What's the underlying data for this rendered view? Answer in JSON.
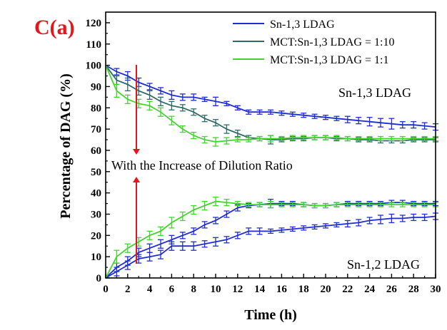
{
  "panel_label": "C(a)",
  "colors": {
    "panel_label": "#e8141a",
    "arrow": "#e8141a",
    "axis": "#000000"
  },
  "annotations": {
    "top_curve": "Sn-1,3 LDAG",
    "bottom_curve": "Sn-1,2 LDAG",
    "arrow_text": "With the Increase of Dilution Ratio"
  },
  "chart_data": {
    "type": "line",
    "title": "",
    "xlabel": "Time (h)",
    "ylabel": "Percentage of DAG (%)",
    "xlim": [
      0,
      30
    ],
    "ylim": [
      0,
      125
    ],
    "xticks": [
      0,
      2,
      4,
      6,
      8,
      10,
      12,
      14,
      16,
      18,
      20,
      22,
      24,
      26,
      28,
      30
    ],
    "yticks": [
      0,
      10,
      20,
      30,
      40,
      50,
      60,
      70,
      80,
      90,
      100,
      110,
      120
    ],
    "grid": false,
    "legend_position": "top-right",
    "legend": [
      {
        "label": "Sn-1,3 LDAG",
        "color": "#1f2bd6"
      },
      {
        "label": "MCT:Sn-1,3 LDAG = 1:10",
        "color": "#2e6b66"
      },
      {
        "label": "MCT:Sn-1,3 LDAG = 1:1",
        "color": "#3fd629"
      }
    ],
    "series": [
      {
        "group": "Sn-1,3 LDAG",
        "color": "#1f2bd6",
        "x": [
          0,
          1,
          2,
          3,
          4,
          5,
          6,
          7,
          8,
          9,
          10,
          11,
          12,
          13,
          14,
          15,
          16,
          17,
          18,
          19,
          20,
          21,
          22,
          23,
          24,
          25,
          26,
          27,
          28,
          29,
          30
        ],
        "y": [
          100,
          97,
          95,
          92,
          90,
          88,
          86,
          85,
          85,
          84,
          83,
          82,
          80,
          78,
          78,
          78,
          77.5,
          77,
          76.5,
          76,
          75.5,
          75,
          74.5,
          74,
          73.5,
          73,
          72.5,
          72,
          72,
          71.5,
          71
        ],
        "err": [
          0,
          1.5,
          2,
          2,
          1.5,
          1.5,
          2,
          1.5,
          1.5,
          1,
          2,
          1,
          1,
          1,
          1,
          1,
          1,
          1,
          1,
          1,
          1,
          1,
          1.5,
          1.5,
          2,
          2,
          2.5,
          1.5,
          1.5,
          1.5,
          1.5
        ]
      },
      {
        "group": "Sn-1,3 LDAG",
        "color": "#2e6b66",
        "x": [
          0,
          1,
          2,
          3,
          4,
          5,
          6,
          7,
          8,
          9,
          10,
          11,
          12,
          13,
          14,
          15,
          16,
          17,
          18,
          19,
          20,
          21,
          22,
          23,
          24,
          25,
          26,
          27,
          28,
          29,
          30
        ],
        "y": [
          100,
          93,
          91,
          88,
          86,
          83,
          81,
          80,
          78,
          75,
          73,
          70,
          68,
          66,
          65.5,
          65,
          65,
          65.5,
          65.5,
          66,
          66,
          65.5,
          65.5,
          65,
          65,
          64.5,
          64.5,
          64.5,
          65,
          65,
          65
        ],
        "err": [
          0,
          2,
          3,
          2,
          2,
          2,
          2,
          1.5,
          1.5,
          1.5,
          1.5,
          2,
          1.5,
          1,
          1,
          2,
          1,
          1,
          1,
          1,
          1,
          1,
          1,
          1,
          1,
          1,
          1,
          1,
          1,
          1,
          1
        ]
      },
      {
        "group": "Sn-1,3 LDAG",
        "color": "#3fd629",
        "x": [
          0,
          1,
          2,
          3,
          4,
          5,
          6,
          7,
          8,
          9,
          10,
          11,
          12,
          13,
          14,
          15,
          16,
          17,
          18,
          19,
          20,
          21,
          22,
          23,
          24,
          25,
          26,
          27,
          28,
          29,
          30
        ],
        "y": [
          100,
          88,
          84,
          82,
          81,
          78,
          74,
          70,
          67,
          65,
          64,
          64.5,
          65,
          65,
          65.5,
          65.5,
          65.5,
          66,
          66,
          66,
          66,
          66,
          65.5,
          65.5,
          65.5,
          65.5,
          65.5,
          65.5,
          65.5,
          65.5,
          65.5
        ],
        "err": [
          0,
          3,
          2,
          2,
          2,
          2,
          2,
          1.5,
          1.5,
          1.5,
          2,
          1.5,
          1,
          1,
          1,
          1.5,
          1,
          1,
          1,
          1,
          1,
          1,
          1,
          1,
          1,
          1,
          1,
          1,
          1,
          1,
          1
        ]
      },
      {
        "group": "Sn-1,2 LDAG",
        "color": "#1f2bd6",
        "x": [
          0,
          1,
          2,
          3,
          4,
          5,
          6,
          7,
          8,
          9,
          10,
          11,
          12,
          13,
          14,
          15,
          16,
          17,
          18,
          19,
          20,
          21,
          22,
          23,
          24,
          25,
          26,
          27,
          28,
          29,
          30
        ],
        "y": [
          0,
          3,
          6,
          9,
          10,
          11,
          15,
          15,
          15,
          16,
          17,
          18,
          20,
          22,
          22,
          22,
          22.5,
          23,
          23.5,
          24,
          24.5,
          25,
          25.5,
          26,
          27,
          27.5,
          28,
          28,
          28.5,
          28.5,
          29
        ],
        "err": [
          0,
          2,
          2,
          2,
          2,
          2,
          2,
          2,
          2,
          1.5,
          2,
          1.5,
          1.5,
          1.5,
          1.5,
          1,
          1,
          1,
          1,
          1,
          1,
          1,
          1.5,
          1.5,
          1.5,
          2,
          2,
          1.5,
          1.5,
          1.5,
          1.5
        ]
      },
      {
        "group": "Sn-1,2 LDAG",
        "color": "#1f2bd6",
        "x": [
          0,
          1,
          2,
          3,
          4,
          5,
          6,
          7,
          8,
          9,
          10,
          11,
          12,
          13,
          14,
          15,
          16,
          17,
          18,
          19,
          20,
          21,
          22,
          23,
          24,
          25,
          26,
          27,
          28,
          29,
          30
        ],
        "y": [
          0,
          5,
          8,
          12,
          14,
          16,
          18,
          20,
          22,
          25,
          27,
          30,
          33,
          34,
          34.5,
          35,
          35,
          35,
          34.5,
          34,
          34,
          34.5,
          35,
          35,
          35,
          35,
          35.5,
          35.5,
          35,
          35,
          35
        ],
        "err": [
          0,
          2,
          2,
          2,
          2,
          2,
          2,
          1.5,
          1.5,
          1.5,
          1.5,
          1.5,
          1.5,
          1,
          1,
          2,
          1,
          1,
          1,
          1,
          1,
          1,
          1,
          1,
          1,
          1,
          1,
          1,
          1,
          1,
          1
        ]
      },
      {
        "group": "Sn-1,2 LDAG",
        "color": "#3fd629",
        "x": [
          0,
          1,
          2,
          3,
          4,
          5,
          6,
          7,
          8,
          9,
          10,
          11,
          12,
          13,
          14,
          15,
          16,
          17,
          18,
          19,
          20,
          21,
          22,
          23,
          24,
          25,
          26,
          27,
          28,
          29,
          30
        ],
        "y": [
          0,
          10,
          14,
          17,
          20,
          22,
          26,
          29,
          32,
          34,
          36,
          35.5,
          35,
          34.5,
          34.5,
          34.5,
          34.5,
          34.5,
          34.5,
          34,
          34,
          34.5,
          34.5,
          34.5,
          34.5,
          34.5,
          34.5,
          34.5,
          34.5,
          34.5,
          34.5
        ],
        "err": [
          0,
          3,
          2,
          2,
          2,
          2,
          2.5,
          2,
          2,
          2,
          2,
          1.5,
          1,
          1,
          1,
          1.5,
          1,
          1,
          1,
          1,
          1,
          1,
          1,
          1,
          1,
          1,
          1,
          1,
          1,
          1,
          1
        ]
      }
    ]
  }
}
